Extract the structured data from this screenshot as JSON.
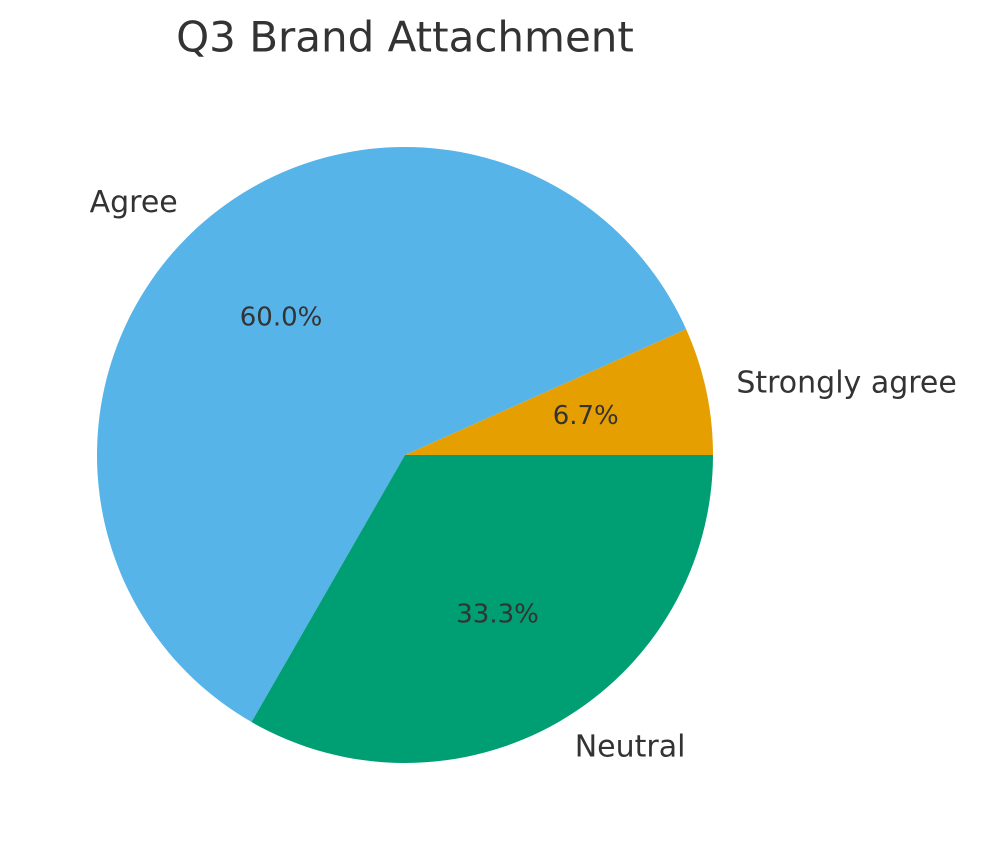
{
  "chart_data": {
    "type": "pie",
    "title": "Q3 Brand Attachment",
    "categories": [
      "Strongly agree",
      "Agree",
      "Neutral"
    ],
    "values": [
      6.7,
      60.0,
      33.3
    ],
    "value_labels": [
      "6.7%",
      "60.0%",
      "33.3%"
    ],
    "colors": [
      "#E69F00",
      "#56B4E9",
      "#009E73"
    ]
  }
}
